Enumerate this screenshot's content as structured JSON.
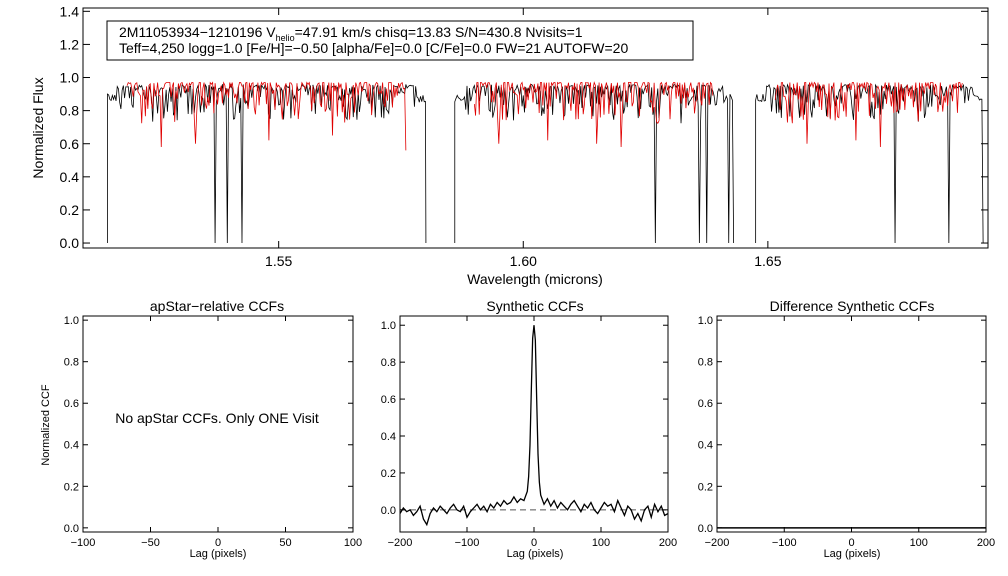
{
  "colors": {
    "observed": "#000000",
    "model": "#e00000",
    "axis": "#000000",
    "background": "#ffffff"
  },
  "chart_data": [
    {
      "type": "line",
      "panel": "spectrum",
      "info": {
        "line1_pre": "2M11053934−1210196  V",
        "line1_sub": "helio",
        "line1_post": "=47.91 km/s  chisq=13.83  S/N=430.8  Nvisits=1",
        "line2": "Teff=4,250 logg=1.0 [Fe/H]=−0.50 [alpha/Fe]=0.0 [C/Fe]=0.0 FW=21 AUTOFW=20"
      },
      "xlabel": "Wavelength (microns)",
      "ylabel": "Normalized Flux",
      "xlim": [
        1.51,
        1.695
      ],
      "ylim": [
        -0.03,
        1.42
      ],
      "xticks": [
        1.55,
        1.6,
        1.65
      ],
      "xtick_labels": [
        "1.55",
        "1.60",
        "1.65"
      ],
      "yticks": [
        0.0,
        0.2,
        0.4,
        0.6,
        0.8,
        1.0,
        1.2,
        1.4
      ],
      "ytick_labels": [
        "0.0",
        "0.2",
        "0.4",
        "0.6",
        "0.8",
        "1.0",
        "1.2",
        "1.4"
      ],
      "detector_chips": [
        [
          1.515,
          1.5801
        ],
        [
          1.586,
          1.643
        ],
        [
          1.6475,
          1.694
        ]
      ],
      "series": [
        {
          "name": "observed spectrum",
          "color": "#000000",
          "continuum": 0.95
        },
        {
          "name": "synthetic model",
          "color": "#e00000",
          "continuum": 0.97
        }
      ],
      "deep_absorption_features": [
        {
          "x": 1.537,
          "depth": 0.0
        },
        {
          "x": 1.5395,
          "depth": 0.0
        },
        {
          "x": 1.5425,
          "depth": 0.0
        },
        {
          "x": 1.627,
          "depth": 0.0
        },
        {
          "x": 1.636,
          "depth": 0.0
        },
        {
          "x": 1.6375,
          "depth": 0.0
        },
        {
          "x": 1.642,
          "depth": 0.0
        },
        {
          "x": 1.676,
          "depth": 0.0
        },
        {
          "x": 1.687,
          "depth": 0.0
        }
      ],
      "model_strong_lines": [
        {
          "x": 1.526,
          "value": 0.58
        },
        {
          "x": 1.533,
          "value": 0.6
        },
        {
          "x": 1.548,
          "value": 0.62
        },
        {
          "x": 1.561,
          "value": 0.65
        },
        {
          "x": 1.576,
          "value": 0.56
        },
        {
          "x": 1.595,
          "value": 0.6
        },
        {
          "x": 1.605,
          "value": 0.62
        },
        {
          "x": 1.615,
          "value": 0.6
        },
        {
          "x": 1.62,
          "value": 0.58
        },
        {
          "x": 1.658,
          "value": 0.6
        },
        {
          "x": 1.668,
          "value": 0.62
        },
        {
          "x": 1.673,
          "value": 0.58
        }
      ]
    },
    {
      "type": "line",
      "panel": "apstar_ccf",
      "title": "apStar−relative CCFs",
      "xlabel": "Lag (pixels)",
      "ylabel": "Normalized CCF",
      "xlim": [
        -100,
        100
      ],
      "ylim": [
        -0.02,
        1.02
      ],
      "xticks": [
        -100,
        -50,
        0,
        50,
        100
      ],
      "xtick_labels": [
        "−100",
        "−50",
        "0",
        "50",
        "100"
      ],
      "yticks": [
        0.0,
        0.2,
        0.4,
        0.6,
        0.8,
        1.0
      ],
      "ytick_labels": [
        "0.0",
        "0.2",
        "0.4",
        "0.6",
        "0.8",
        "1.0"
      ],
      "annotation": "No apStar CCFs.  Only ONE Visit",
      "series": []
    },
    {
      "type": "line",
      "panel": "synthetic_ccf",
      "title": "Synthetic CCFs",
      "xlabel": "Lag (pixels)",
      "ylabel": "",
      "xlim": [
        -200,
        200
      ],
      "ylim": [
        -0.12,
        1.05
      ],
      "xticks": [
        -200,
        -100,
        0,
        100,
        200
      ],
      "xtick_labels": [
        "−200",
        "−100",
        "0",
        "100",
        "200"
      ],
      "yticks": [
        0.0,
        0.2,
        0.4,
        0.6,
        0.8,
        1.0
      ],
      "ytick_labels": [
        "0.0",
        "0.2",
        "0.4",
        "0.6",
        "0.8",
        "1.0"
      ],
      "reference_line": {
        "y": 0.0,
        "style": "dashed"
      },
      "series": [
        {
          "name": "CCF",
          "x": [
            -200,
            -195,
            -190,
            -185,
            -180,
            -175,
            -170,
            -165,
            -160,
            -155,
            -150,
            -145,
            -140,
            -135,
            -130,
            -125,
            -120,
            -115,
            -110,
            -105,
            -100,
            -95,
            -90,
            -85,
            -80,
            -75,
            -70,
            -65,
            -60,
            -55,
            -50,
            -45,
            -40,
            -35,
            -30,
            -25,
            -20,
            -15,
            -10,
            -8,
            -6,
            -4,
            -2,
            0,
            2,
            4,
            6,
            8,
            10,
            15,
            20,
            25,
            30,
            35,
            40,
            45,
            50,
            55,
            60,
            65,
            70,
            75,
            80,
            85,
            90,
            95,
            100,
            105,
            110,
            115,
            120,
            125,
            130,
            135,
            140,
            145,
            150,
            155,
            160,
            165,
            170,
            175,
            180,
            185,
            190,
            195,
            200
          ],
          "y": [
            -0.02,
            0.01,
            -0.01,
            0.0,
            -0.03,
            -0.01,
            0.02,
            -0.05,
            -0.08,
            -0.02,
            0.01,
            -0.01,
            0.02,
            0.0,
            -0.02,
            0.01,
            0.03,
            0.0,
            -0.01,
            0.02,
            -0.04,
            -0.01,
            0.01,
            0.03,
            0.0,
            0.02,
            -0.01,
            0.03,
            0.01,
            0.04,
            0.02,
            0.05,
            0.03,
            0.04,
            0.07,
            0.04,
            0.06,
            0.05,
            0.1,
            0.18,
            0.35,
            0.65,
            0.93,
            1.0,
            0.92,
            0.6,
            0.3,
            0.15,
            0.08,
            0.03,
            0.06,
            0.02,
            0.05,
            0.01,
            0.04,
            0.02,
            0.0,
            0.03,
            0.05,
            0.02,
            -0.01,
            0.03,
            0.01,
            0.04,
            0.0,
            -0.02,
            0.01,
            0.04,
            0.02,
            0.03,
            -0.01,
            0.05,
            0.01,
            -0.03,
            0.02,
            0.0,
            -0.05,
            -0.02,
            -0.06,
            0.0,
            0.02,
            -0.04,
            0.03,
            -0.01,
            0.02,
            -0.03,
            -0.02
          ]
        }
      ]
    },
    {
      "type": "line",
      "panel": "difference_ccf",
      "title": "Difference Synthetic CCFs",
      "xlabel": "Lag (pixels)",
      "ylabel": "",
      "xlim": [
        -200,
        200
      ],
      "ylim": [
        -0.02,
        1.02
      ],
      "xticks": [
        -200,
        -100,
        0,
        100,
        200
      ],
      "xtick_labels": [
        "−200",
        "−100",
        "0",
        "100",
        "200"
      ],
      "yticks": [
        0.0,
        0.2,
        0.4,
        0.6,
        0.8,
        1.0
      ],
      "ytick_labels": [
        "0.0",
        "0.2",
        "0.4",
        "0.6",
        "0.8",
        "1.0"
      ],
      "series": [
        {
          "name": "difference",
          "x": [
            -200,
            200
          ],
          "y": [
            0.0,
            0.0
          ]
        }
      ]
    }
  ]
}
